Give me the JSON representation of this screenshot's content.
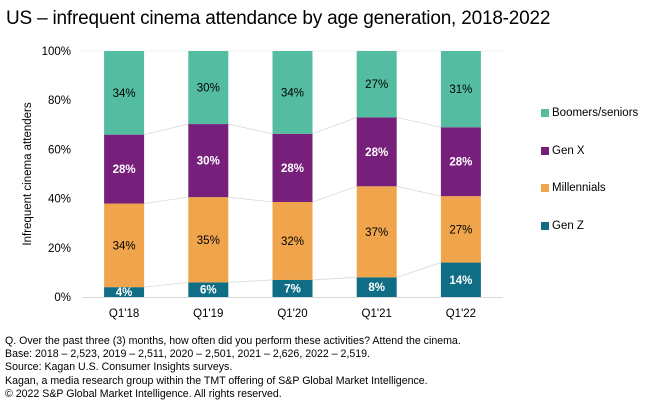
{
  "title": "US – infrequent cinema attendance by age generation, 2018-2022",
  "chart_data": {
    "type": "bar",
    "stacked": true,
    "normalized": true,
    "title": "US – infrequent cinema attendance by age generation, 2018-2022",
    "xlabel": "",
    "ylabel": "Infrequent cinema attenders",
    "ylim": [
      0,
      100
    ],
    "yticks": [
      "0%",
      "20%",
      "40%",
      "60%",
      "80%",
      "100%"
    ],
    "ytick_values": [
      0,
      20,
      40,
      60,
      80,
      100
    ],
    "categories": [
      "Q1'18",
      "Q1'19",
      "Q1'20",
      "Q1'21",
      "Q1'22"
    ],
    "series": [
      {
        "name": "Gen Z",
        "color": "#0F6E86",
        "label_color": "#ffffff",
        "values": [
          4,
          6,
          7,
          8,
          14
        ]
      },
      {
        "name": "Millennials",
        "color": "#F0A54C",
        "label_color": "#000000",
        "values": [
          34,
          35,
          32,
          37,
          27
        ]
      },
      {
        "name": "Gen X",
        "color": "#76207C",
        "label_color": "#ffffff",
        "values": [
          28,
          30,
          28,
          28,
          28
        ]
      },
      {
        "name": "Boomers/seniors",
        "color": "#54BCA0",
        "label_color": "#000000",
        "values": [
          34,
          30,
          34,
          27,
          31
        ]
      }
    ],
    "data_label_suffix": "%",
    "legend": {
      "placement": "right",
      "order": [
        "Boomers/seniors",
        "Gen X",
        "Millennials",
        "Gen Z"
      ]
    },
    "series_lines": true,
    "grid": false
  },
  "notes": [
    "Q. Over the past three (3) months, how often did you perform these activities? Attend the cinema.",
    "Base: 2018 – 2,523, 2019 – 2,511, 2020 – 2,501, 2021 – 2,626, 2022 – 2,519.",
    "Source: Kagan U.S. Consumer Insights surveys.",
    "Kagan, a media research group within the TMT offering of S&P Global Market Intelligence.",
    "© 2022 S&P Global Market Intelligence.  All rights reserved."
  ]
}
